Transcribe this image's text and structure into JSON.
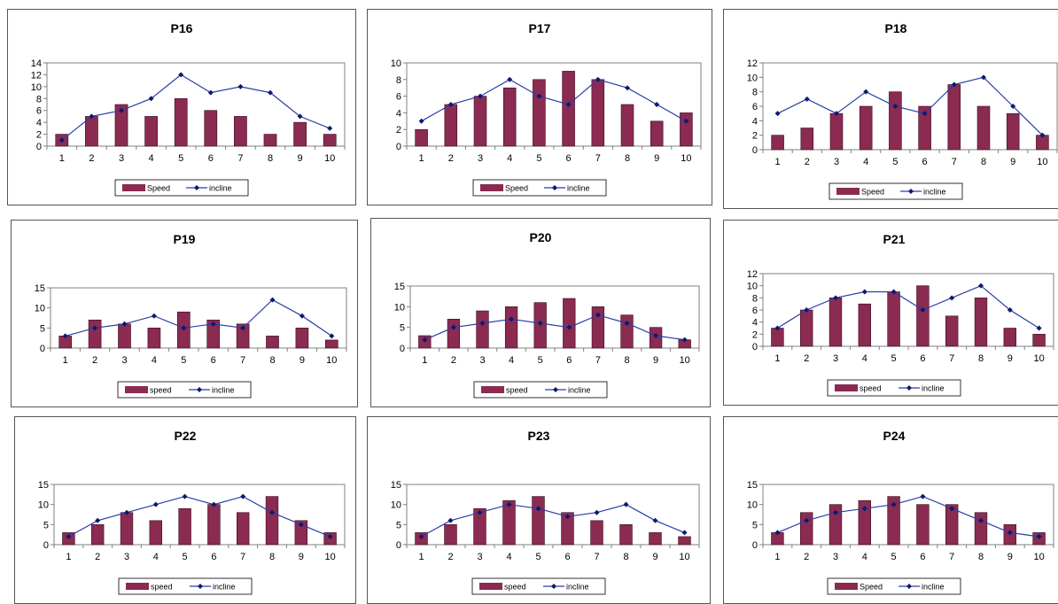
{
  "style": {
    "bar_color": "#8B2B52",
    "bar_edge": "#3a0a20",
    "line_color": "#2A3FA8",
    "marker_color": "#0B1A6E"
  },
  "chart_data": [
    {
      "type": "bar",
      "title": "P16",
      "categories": [
        "1",
        "2",
        "3",
        "4",
        "5",
        "6",
        "7",
        "8",
        "9",
        "10"
      ],
      "ylim": [
        0,
        14
      ],
      "yticks": [
        0,
        2,
        4,
        6,
        8,
        10,
        12,
        14
      ],
      "series": [
        {
          "name": "Speed",
          "kind": "bar",
          "values": [
            2,
            5,
            7,
            5,
            8,
            6,
            5,
            2,
            4,
            2
          ]
        },
        {
          "name": "incline",
          "kind": "line",
          "values": [
            1,
            5,
            6,
            8,
            12,
            9,
            10,
            9,
            5,
            3
          ]
        }
      ]
    },
    {
      "type": "bar",
      "title": "P17",
      "categories": [
        "1",
        "2",
        "3",
        "4",
        "5",
        "6",
        "7",
        "8",
        "9",
        "10"
      ],
      "ylim": [
        0,
        10
      ],
      "yticks": [
        0,
        2,
        4,
        6,
        8,
        10
      ],
      "series": [
        {
          "name": "Speed",
          "kind": "bar",
          "values": [
            2,
            5,
            6,
            7,
            8,
            9,
            8,
            5,
            3,
            4
          ]
        },
        {
          "name": "incline",
          "kind": "line",
          "values": [
            3,
            5,
            6,
            8,
            6,
            5,
            8,
            7,
            5,
            3
          ]
        }
      ]
    },
    {
      "type": "bar",
      "title": "P18",
      "categories": [
        "1",
        "2",
        "3",
        "4",
        "5",
        "6",
        "7",
        "8",
        "9",
        "10"
      ],
      "ylim": [
        0,
        12
      ],
      "yticks": [
        0,
        2,
        4,
        6,
        8,
        10,
        12
      ],
      "series": [
        {
          "name": "Speed",
          "kind": "bar",
          "values": [
            2,
            3,
            5,
            6,
            8,
            6,
            9,
            6,
            5,
            2
          ]
        },
        {
          "name": "incline",
          "kind": "line",
          "values": [
            5,
            7,
            5,
            8,
            6,
            5,
            9,
            10,
            6,
            2
          ]
        }
      ]
    },
    {
      "type": "bar",
      "title": "P19",
      "categories": [
        "1",
        "2",
        "3",
        "4",
        "5",
        "6",
        "7",
        "8",
        "9",
        "10"
      ],
      "ylim": [
        0,
        15
      ],
      "yticks": [
        0,
        5,
        10,
        15
      ],
      "series": [
        {
          "name": "speed",
          "kind": "bar",
          "values": [
            3,
            7,
            6,
            5,
            9,
            7,
            6,
            3,
            5,
            2
          ]
        },
        {
          "name": "incline",
          "kind": "line",
          "values": [
            3,
            5,
            6,
            8,
            5,
            6,
            5,
            12,
            8,
            3
          ]
        }
      ]
    },
    {
      "type": "bar",
      "title": "P20",
      "categories": [
        "1",
        "2",
        "3",
        "4",
        "5",
        "6",
        "7",
        "8",
        "9",
        "10"
      ],
      "ylim": [
        0,
        15
      ],
      "yticks": [
        0,
        5,
        10,
        15
      ],
      "series": [
        {
          "name": "speed",
          "kind": "bar",
          "values": [
            3,
            7,
            9,
            10,
            11,
            12,
            10,
            8,
            5,
            2
          ]
        },
        {
          "name": "incline",
          "kind": "line",
          "values": [
            2,
            5,
            6,
            7,
            6,
            5,
            8,
            6,
            3,
            2
          ]
        }
      ]
    },
    {
      "type": "bar",
      "title": "P21",
      "categories": [
        "1",
        "2",
        "3",
        "4",
        "5",
        "6",
        "7",
        "8",
        "9",
        "10"
      ],
      "ylim": [
        0,
        12
      ],
      "yticks": [
        0,
        2,
        4,
        6,
        8,
        10,
        12
      ],
      "series": [
        {
          "name": "speed",
          "kind": "bar",
          "values": [
            3,
            6,
            8,
            7,
            9,
            10,
            5,
            8,
            3,
            2
          ]
        },
        {
          "name": "incline",
          "kind": "line",
          "values": [
            3,
            6,
            8,
            9,
            9,
            6,
            8,
            10,
            6,
            3
          ]
        }
      ]
    },
    {
      "type": "bar",
      "title": "P22",
      "categories": [
        "1",
        "2",
        "3",
        "4",
        "5",
        "6",
        "7",
        "8",
        "9",
        "10"
      ],
      "ylim": [
        0,
        15
      ],
      "yticks": [
        0,
        5,
        10,
        15
      ],
      "series": [
        {
          "name": "speed",
          "kind": "bar",
          "values": [
            3,
            5,
            8,
            6,
            9,
            10,
            8,
            12,
            6,
            3
          ]
        },
        {
          "name": "incline",
          "kind": "line",
          "values": [
            2,
            6,
            8,
            10,
            12,
            10,
            12,
            8,
            5,
            2
          ]
        }
      ]
    },
    {
      "type": "bar",
      "title": "P23",
      "categories": [
        "1",
        "2",
        "3",
        "4",
        "5",
        "6",
        "7",
        "8",
        "9",
        "10"
      ],
      "ylim": [
        0,
        15
      ],
      "yticks": [
        0,
        5,
        10,
        15
      ],
      "series": [
        {
          "name": "speed",
          "kind": "bar",
          "values": [
            3,
            5,
            9,
            11,
            12,
            8,
            6,
            5,
            3,
            2
          ]
        },
        {
          "name": "incline",
          "kind": "line",
          "values": [
            2,
            6,
            8,
            10,
            9,
            7,
            8,
            10,
            6,
            3
          ]
        }
      ]
    },
    {
      "type": "bar",
      "title": "P24",
      "categories": [
        "1",
        "2",
        "3",
        "4",
        "5",
        "6",
        "7",
        "8",
        "9",
        "10"
      ],
      "ylim": [
        0,
        15
      ],
      "yticks": [
        0,
        5,
        10,
        15
      ],
      "series": [
        {
          "name": "Speed",
          "kind": "bar",
          "values": [
            3,
            8,
            10,
            11,
            12,
            10,
            10,
            8,
            5,
            3
          ]
        },
        {
          "name": "incline",
          "kind": "line",
          "values": [
            3,
            6,
            8,
            9,
            10,
            12,
            9,
            6,
            3,
            2
          ]
        }
      ]
    }
  ]
}
